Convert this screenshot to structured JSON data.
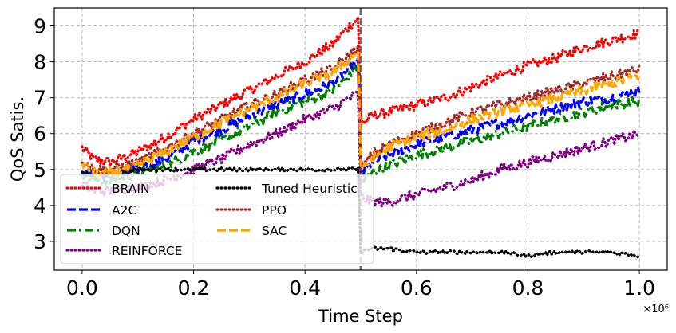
{
  "chart_data": {
    "type": "line",
    "xlabel": "Time Step",
    "ylabel": "QoS Satis.",
    "x_offset_label": "×10⁶",
    "xlim": [
      -0.05,
      1.05
    ],
    "ylim": [
      2.2,
      9.5
    ],
    "xticks": [
      0.0,
      0.2,
      0.4,
      0.6,
      0.8,
      1.0
    ],
    "xtick_labels": [
      "0.0",
      "0.2",
      "0.4",
      "0.6",
      "0.8",
      "1.0"
    ],
    "yticks": [
      3,
      4,
      5,
      6,
      7,
      8,
      9
    ],
    "ytick_labels": [
      "3",
      "4",
      "5",
      "6",
      "7",
      "8",
      "9"
    ],
    "grid": true,
    "vline_x": 0.5,
    "legend_position": "lower-left",
    "series": [
      {
        "name": "BRAIN",
        "color": "#ff0000",
        "style": "dotted",
        "x": [
          0.0,
          0.02,
          0.05,
          0.1,
          0.15,
          0.2,
          0.25,
          0.3,
          0.35,
          0.4,
          0.45,
          0.48,
          0.495,
          0.5,
          0.505,
          0.52,
          0.55,
          0.6,
          0.65,
          0.7,
          0.75,
          0.8,
          0.85,
          0.9,
          0.95,
          1.0
        ],
        "y": [
          5.6,
          5.3,
          5.2,
          5.5,
          5.9,
          6.4,
          6.8,
          7.2,
          7.6,
          8.0,
          8.5,
          9.0,
          9.2,
          6.5,
          6.3,
          6.5,
          6.6,
          6.8,
          7.0,
          7.3,
          7.6,
          7.9,
          8.1,
          8.4,
          8.6,
          8.8
        ]
      },
      {
        "name": "A2C",
        "color": "#0000ff",
        "style": "dashed",
        "x": [
          0.0,
          0.02,
          0.05,
          0.1,
          0.15,
          0.2,
          0.25,
          0.3,
          0.35,
          0.4,
          0.45,
          0.48,
          0.495,
          0.5,
          0.505,
          0.52,
          0.55,
          0.6,
          0.65,
          0.7,
          0.75,
          0.8,
          0.85,
          0.9,
          0.95,
          1.0
        ],
        "y": [
          5.0,
          4.8,
          4.8,
          5.0,
          5.3,
          5.8,
          6.1,
          6.5,
          6.8,
          7.1,
          7.4,
          7.8,
          8.0,
          5.0,
          4.9,
          5.2,
          5.4,
          5.7,
          5.9,
          6.1,
          6.3,
          6.5,
          6.7,
          6.9,
          7.0,
          7.2
        ]
      },
      {
        "name": "DQN",
        "color": "#008000",
        "style": "dashdot",
        "x": [
          0.0,
          0.02,
          0.05,
          0.1,
          0.15,
          0.2,
          0.25,
          0.3,
          0.35,
          0.4,
          0.45,
          0.48,
          0.495,
          0.5,
          0.505,
          0.52,
          0.55,
          0.6,
          0.65,
          0.7,
          0.75,
          0.8,
          0.85,
          0.9,
          0.95,
          1.0
        ],
        "y": [
          4.9,
          4.7,
          4.7,
          4.9,
          5.1,
          5.5,
          5.8,
          6.2,
          6.6,
          6.9,
          7.2,
          7.6,
          7.9,
          4.9,
          4.7,
          4.9,
          5.1,
          5.4,
          5.6,
          5.8,
          6.0,
          6.2,
          6.4,
          6.6,
          6.8,
          6.9
        ]
      },
      {
        "name": "REINFORCE",
        "color": "#800080",
        "style": "dotted",
        "x": [
          0.0,
          0.02,
          0.05,
          0.1,
          0.15,
          0.2,
          0.25,
          0.3,
          0.35,
          0.4,
          0.45,
          0.48,
          0.495,
          0.5,
          0.505,
          0.52,
          0.55,
          0.6,
          0.65,
          0.7,
          0.75,
          0.8,
          0.85,
          0.9,
          0.95,
          1.0
        ],
        "y": [
          4.6,
          4.4,
          4.4,
          4.5,
          4.7,
          5.0,
          5.3,
          5.7,
          6.0,
          6.4,
          6.7,
          7.0,
          7.1,
          4.3,
          4.2,
          4.1,
          4.1,
          4.3,
          4.5,
          4.7,
          5.0,
          5.2,
          5.4,
          5.6,
          5.8,
          6.0
        ]
      },
      {
        "name": "Tuned Heuristic",
        "color": "#000000",
        "style": "dotted",
        "x": [
          0.0,
          0.05,
          0.1,
          0.15,
          0.2,
          0.25,
          0.3,
          0.35,
          0.4,
          0.45,
          0.495,
          0.5,
          0.52,
          0.55,
          0.6,
          0.65,
          0.7,
          0.75,
          0.8,
          0.85,
          0.9,
          0.95,
          1.0
        ],
        "y": [
          4.9,
          4.9,
          5.0,
          5.0,
          5.0,
          5.0,
          5.0,
          5.0,
          5.0,
          5.0,
          5.0,
          2.7,
          2.8,
          2.8,
          2.7,
          2.7,
          2.7,
          2.7,
          2.6,
          2.7,
          2.7,
          2.7,
          2.6
        ]
      },
      {
        "name": "PPO",
        "color": "#a52a2a",
        "style": "dotted",
        "x": [
          0.0,
          0.02,
          0.05,
          0.1,
          0.15,
          0.2,
          0.25,
          0.3,
          0.35,
          0.4,
          0.45,
          0.48,
          0.495,
          0.5,
          0.505,
          0.52,
          0.55,
          0.6,
          0.65,
          0.7,
          0.75,
          0.8,
          0.85,
          0.9,
          0.95,
          1.0
        ],
        "y": [
          5.3,
          5.0,
          5.0,
          5.2,
          5.6,
          6.0,
          6.4,
          6.8,
          7.1,
          7.5,
          7.8,
          8.2,
          8.4,
          5.3,
          5.1,
          5.4,
          5.7,
          6.0,
          6.3,
          6.6,
          6.8,
          7.0,
          7.2,
          7.4,
          7.6,
          7.8
        ]
      },
      {
        "name": "SAC",
        "color": "#ffa500",
        "style": "dashed",
        "x": [
          0.0,
          0.02,
          0.05,
          0.1,
          0.15,
          0.2,
          0.25,
          0.3,
          0.35,
          0.4,
          0.45,
          0.48,
          0.495,
          0.5,
          0.505,
          0.52,
          0.55,
          0.6,
          0.65,
          0.7,
          0.75,
          0.8,
          0.85,
          0.9,
          0.95,
          1.0
        ],
        "y": [
          5.2,
          4.9,
          4.9,
          5.1,
          5.5,
          5.9,
          6.3,
          6.7,
          7.0,
          7.4,
          7.7,
          8.1,
          8.3,
          5.2,
          5.0,
          5.3,
          5.6,
          5.9,
          6.1,
          6.4,
          6.6,
          6.8,
          7.0,
          7.2,
          7.4,
          7.6
        ]
      }
    ]
  }
}
